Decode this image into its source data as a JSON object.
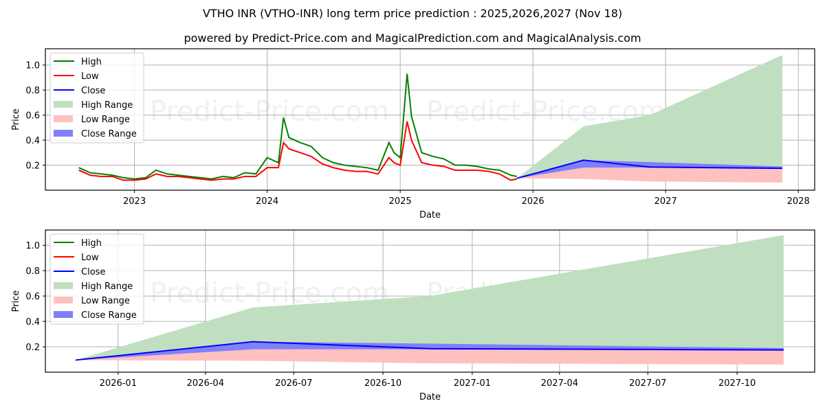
{
  "title": "VTHO INR (VTHO-INR) long term price prediction : 2025,2026,2027 (Nov 18)",
  "subtitle": "powered by Predict-Price.com and MagicalPrediction.com and MagicalAnalysis.com",
  "watermark": "Predict-Price.com",
  "colors": {
    "high": "#008000",
    "low": "#ff0000",
    "close": "#0000ff",
    "high_range": "#c0dfc0",
    "low_range": "#ffc0c0",
    "close_range": "#8080f8",
    "grid": "#b0b0b0"
  },
  "legend": [
    {
      "label": "High",
      "type": "line",
      "color": "#008000"
    },
    {
      "label": "Low",
      "type": "line",
      "color": "#ff0000"
    },
    {
      "label": "Close",
      "type": "line",
      "color": "#0000ff"
    },
    {
      "label": "High Range",
      "type": "patch",
      "color": "#c0dfc0"
    },
    {
      "label": "Low Range",
      "type": "patch",
      "color": "#ffc0c0"
    },
    {
      "label": "Close Range",
      "type": "patch",
      "color": "#8080f8"
    }
  ],
  "chart_data": [
    {
      "type": "line",
      "title": "VTHO INR (VTHO-INR) long term price prediction : 2025,2026,2027 (Nov 18)",
      "xlabel": "Date",
      "ylabel": "Price",
      "ylim": [
        0.0,
        1.13
      ],
      "xlim": [
        "2022-05-01",
        "2028-02-15"
      ],
      "grid": true,
      "legend_position": "upper left",
      "x_ticks": [
        "2023",
        "2024",
        "2025",
        "2026",
        "2027",
        "2028"
      ],
      "y_ticks": [
        "0.2",
        "0.4",
        "0.6",
        "0.8",
        "1.0"
      ],
      "historical": {
        "x": [
          "2022-08-01",
          "2022-09-01",
          "2022-10-01",
          "2022-11-01",
          "2022-12-01",
          "2023-01-01",
          "2023-02-01",
          "2023-03-01",
          "2023-04-01",
          "2023-05-01",
          "2023-06-01",
          "2023-07-01",
          "2023-08-01",
          "2023-09-01",
          "2023-10-01",
          "2023-11-01",
          "2023-12-01",
          "2024-01-01",
          "2024-02-01",
          "2024-02-15",
          "2024-03-01",
          "2024-04-01",
          "2024-05-01",
          "2024-06-01",
          "2024-07-01",
          "2024-08-01",
          "2024-09-01",
          "2024-10-01",
          "2024-11-01",
          "2024-12-01",
          "2024-12-15",
          "2025-01-01",
          "2025-01-20",
          "2025-02-01",
          "2025-03-01",
          "2025-04-01",
          "2025-05-01",
          "2025-06-01",
          "2025-07-01",
          "2025-08-01",
          "2025-09-01",
          "2025-10-01",
          "2025-11-01",
          "2025-11-18"
        ],
        "high": [
          0.18,
          0.14,
          0.13,
          0.12,
          0.1,
          0.09,
          0.1,
          0.16,
          0.13,
          0.12,
          0.11,
          0.1,
          0.09,
          0.11,
          0.1,
          0.14,
          0.13,
          0.26,
          0.22,
          0.58,
          0.42,
          0.38,
          0.35,
          0.26,
          0.22,
          0.2,
          0.19,
          0.18,
          0.16,
          0.38,
          0.3,
          0.26,
          0.93,
          0.59,
          0.3,
          0.27,
          0.25,
          0.2,
          0.2,
          0.19,
          0.17,
          0.16,
          0.12,
          0.11
        ],
        "low": [
          0.16,
          0.12,
          0.11,
          0.11,
          0.08,
          0.08,
          0.09,
          0.13,
          0.11,
          0.11,
          0.1,
          0.09,
          0.08,
          0.09,
          0.09,
          0.11,
          0.11,
          0.18,
          0.18,
          0.38,
          0.33,
          0.3,
          0.27,
          0.21,
          0.18,
          0.16,
          0.15,
          0.15,
          0.13,
          0.26,
          0.22,
          0.2,
          0.55,
          0.4,
          0.22,
          0.2,
          0.19,
          0.16,
          0.16,
          0.16,
          0.15,
          0.13,
          0.08,
          0.09
        ]
      },
      "prediction": {
        "x": [
          "2025-11-18",
          "2026-05-20",
          "2026-11-18",
          "2027-11-18"
        ],
        "close": [
          0.095,
          0.24,
          0.185,
          0.175
        ],
        "high_range_upper": [
          0.095,
          0.51,
          0.6,
          1.08
        ],
        "high_range_lower": [
          0.095,
          0.18,
          0.185,
          0.175
        ],
        "close_range_upper": [
          0.095,
          0.24,
          0.225,
          0.19
        ],
        "close_range_lower": [
          0.095,
          0.18,
          0.18,
          0.17
        ],
        "low_range_upper": [
          0.095,
          0.18,
          0.18,
          0.17
        ],
        "low_range_lower": [
          0.095,
          0.09,
          0.07,
          0.06
        ]
      }
    },
    {
      "type": "line",
      "title": "",
      "xlabel": "Date",
      "ylabel": "Price",
      "ylim": [
        0.0,
        1.12
      ],
      "xlim": [
        "2025-10-18",
        "2027-12-20"
      ],
      "grid": true,
      "legend_position": "upper left",
      "x_ticks": [
        "2026-01",
        "2026-04",
        "2026-07",
        "2026-10",
        "2027-01",
        "2027-04",
        "2027-07",
        "2027-10"
      ],
      "y_ticks": [
        "0.2",
        "0.4",
        "0.6",
        "0.8",
        "1.0"
      ],
      "prediction": {
        "x": [
          "2025-11-18",
          "2026-05-20",
          "2026-11-18",
          "2027-11-18"
        ],
        "close": [
          0.095,
          0.24,
          0.185,
          0.175
        ],
        "high_range_upper": [
          0.095,
          0.51,
          0.6,
          1.08
        ],
        "close_range_upper": [
          0.095,
          0.24,
          0.225,
          0.19
        ],
        "close_range_lower": [
          0.095,
          0.18,
          0.18,
          0.17
        ],
        "low_range_upper": [
          0.095,
          0.18,
          0.18,
          0.17
        ],
        "low_range_lower": [
          0.095,
          0.09,
          0.07,
          0.06
        ]
      }
    }
  ]
}
